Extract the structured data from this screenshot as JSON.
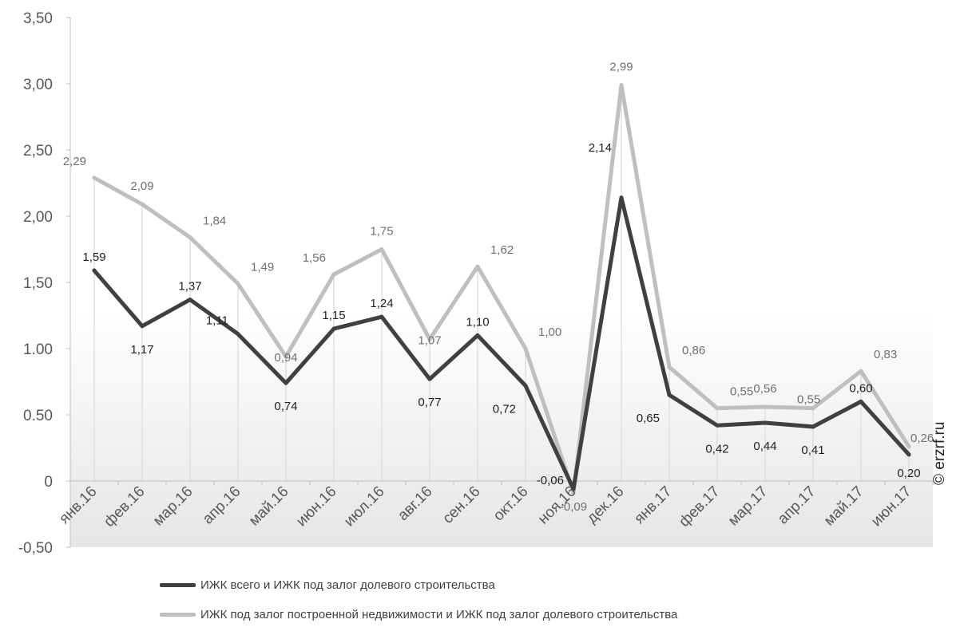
{
  "chart_data": {
    "type": "line",
    "title": "",
    "xlabel": "",
    "ylabel": "",
    "ylim": [
      -0.5,
      3.5
    ],
    "y_ticks": [
      "-0,50",
      "0",
      "0.50",
      "1.00",
      "1,50",
      "2,00",
      "2,50",
      "3,00",
      "3,50"
    ],
    "categories": [
      "янв.16",
      "фев.16",
      "мар.16",
      "апр.16",
      "май.16",
      "июн.16",
      "июл.16",
      "авг.16",
      "сен.16",
      "окт.16",
      "ноя.16",
      "дек.16",
      "янв.17",
      "фев.17",
      "мар.17",
      "апр.17",
      "май.17",
      "июн.17"
    ],
    "series": [
      {
        "name": "ИЖК всего и ИЖК под залог долевого строительства",
        "color": "#404040",
        "values": [
          1.59,
          1.17,
          1.37,
          1.11,
          0.74,
          1.15,
          1.24,
          0.77,
          1.1,
          0.72,
          -0.06,
          2.14,
          0.65,
          0.42,
          0.44,
          0.41,
          0.6,
          0.2
        ],
        "labels": [
          "1,59",
          "1,17",
          "1,37",
          "1,11",
          "0,74",
          "1,15",
          "1,24",
          "0,77",
          "1,10",
          "0,72",
          "-0,06",
          "2,14",
          "0,65",
          "0,42",
          "0,44",
          "0,41",
          "0,60",
          "0,20"
        ]
      },
      {
        "name": "ИЖК под залог построенной недвижимости и ИЖК под залог долевого строительства",
        "color": "#bfbfbf",
        "values": [
          2.29,
          2.09,
          1.84,
          1.49,
          0.94,
          1.56,
          1.75,
          1.07,
          1.62,
          1.0,
          -0.09,
          2.99,
          0.86,
          0.55,
          0.56,
          0.55,
          0.83,
          0.26
        ],
        "labels": [
          "2,29",
          "2,09",
          "1,84",
          "1,49",
          "0,94",
          "1,56",
          "1,75",
          "1,07",
          "1,62",
          "1,00",
          "-0,09",
          "2,99",
          "0,86",
          "0,55",
          "0,56",
          "0,55",
          "0,83",
          "0,26"
        ]
      }
    ],
    "legend_position": "bottom",
    "grid": false
  },
  "legend": {
    "item1": "ИЖК всего и ИЖК под залог долевого строительства",
    "item2": "ИЖК под залог построенной недвижимости и ИЖК под залог долевого строительства"
  },
  "watermark": "© erzrf.ru"
}
